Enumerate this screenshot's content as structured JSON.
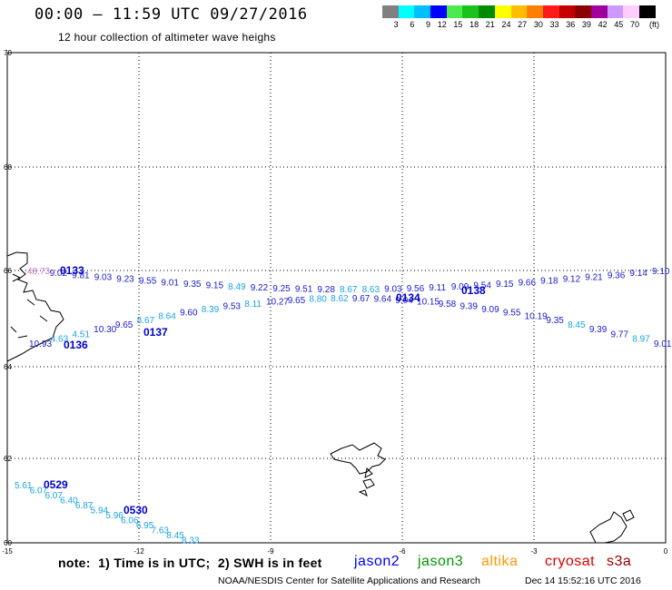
{
  "header": {
    "title": "00:00 – 11:59 UTC 09/27/2016",
    "subtitle": "12 hour collection of altimeter wave heighs"
  },
  "legend": {
    "colors": [
      "#808080",
      "#00ffff",
      "#00bfff",
      "#0000ff",
      "#4be94b",
      "#19c319",
      "#008c00",
      "#ffff00",
      "#ffbf00",
      "#ff7f00",
      "#ff1a1a",
      "#c40000",
      "#8b0000",
      "#a000a0",
      "#cc99ff",
      "#ffccff",
      "#000000"
    ],
    "labels": [
      "3",
      "6",
      "9",
      "12",
      "15",
      "18",
      "21",
      "24",
      "27",
      "30",
      "33",
      "36",
      "39",
      "42",
      "45",
      "70"
    ],
    "unit": "(ft)"
  },
  "axes": {
    "x_ticks": [
      "-15",
      "-12",
      "-9",
      "-6",
      "-3",
      "0"
    ],
    "y_ticks": [
      "70",
      "68",
      "66",
      "64",
      "62",
      "60"
    ]
  },
  "tracks": [
    {
      "time": "0133",
      "color": "#0000cc"
    },
    {
      "time": "0137",
      "color": "#0000cc"
    },
    {
      "time": "0136",
      "color": "#0000cc"
    },
    {
      "time": "0134",
      "color": "#0000cc"
    },
    {
      "time": "0138",
      "color": "#0000cc"
    },
    {
      "time": "0529",
      "color": "#0000cc"
    },
    {
      "time": "0530",
      "color": "#0000cc"
    }
  ],
  "swh_values": {
    "track_top": [
      "48.73",
      "9.02",
      "9.81",
      "9.03",
      "9.23",
      "9.55",
      "9.01",
      "9.35",
      "9.15",
      "8.49",
      "9.22",
      "9.25",
      "9.51",
      "9.28",
      "8.67",
      "8.63",
      "9.03",
      "9.56",
      "9.11",
      "9.09",
      "9.54",
      "9.15",
      "9.66",
      "9.18",
      "9.12",
      "9.21",
      "9.36",
      "9.14",
      "9.10"
    ],
    "track_mid": [
      "10.93",
      "4.63",
      "4.51",
      "10.30",
      "9.65",
      "8.67",
      "8.64",
      "9.60",
      "8.39",
      "9.53",
      "8.11",
      "10.27",
      "9.65",
      "8.80",
      "8.62",
      "9.67",
      "9.64",
      "9.04",
      "10.15",
      "9.58",
      "9.39",
      "9.09",
      "9.55",
      "10.19",
      "9.35",
      "8.45",
      "9.39",
      "9.77",
      "8.97",
      "9.01"
    ],
    "track_low": [
      "5.61",
      "6.07",
      "6.07",
      "6.40",
      "6.87",
      "5.94",
      "5.96",
      "6.06",
      "6.95",
      "7.63",
      "8.45",
      "8.33"
    ]
  },
  "footer": {
    "note": "note:  1) Time is in UTC;  2) SWH is in feet",
    "satellites": [
      {
        "name": "jason2",
        "color": "#0000ff"
      },
      {
        "name": "jason3",
        "color": "#009900"
      },
      {
        "name": "altika",
        "color": "#ff9900"
      },
      {
        "name": "cryosat",
        "color": "#dd0000"
      },
      {
        "name": "s3a",
        "color": "#990000"
      }
    ],
    "credit": "NOAA/NESDIS Center for Satellite Applications and Research",
    "timestamp": "Dec 14 15:52:16 UTC 2016"
  }
}
